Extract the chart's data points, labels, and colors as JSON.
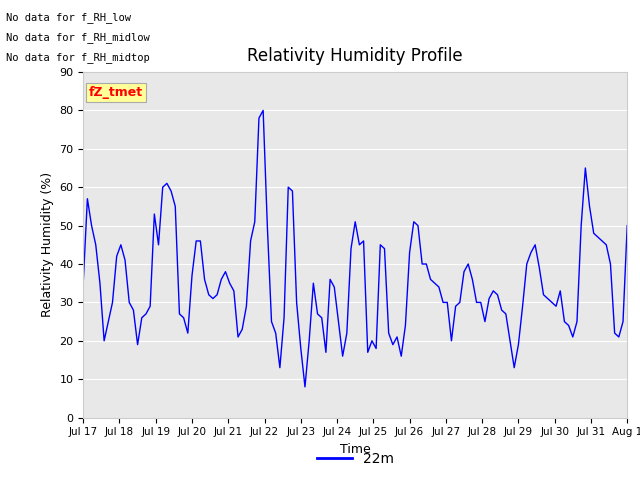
{
  "title": "Relativity Humidity Profile",
  "ylabel": "Relativity Humidity (%)",
  "xlabel": "Time",
  "legend_label": "22m",
  "line_color": "blue",
  "background_color": "#e8e8e8",
  "ylim": [
    0,
    90
  ],
  "yticks": [
    0,
    10,
    20,
    30,
    40,
    50,
    60,
    70,
    80,
    90
  ],
  "no_data_texts": [
    "No data for f_RH_low",
    "No data for f_RH_midlow",
    "No data for f_RH_midtop"
  ],
  "legend_box_text": "fZ_tmet",
  "legend_box_color": "#ffff99",
  "legend_box_text_color": "red",
  "x_tick_labels": [
    "Jul 17",
    "Jul 18",
    "Jul 19",
    "Jul 20",
    "Jul 21",
    "Jul 22",
    "Jul 23",
    "Jul 24",
    "Jul 25",
    "Jul 26",
    "Jul 27",
    "Jul 28",
    "Jul 29",
    "Jul 30",
    "Jul 31",
    "Aug 1"
  ],
  "rh_values": [
    35,
    57,
    50,
    45,
    35,
    20,
    25,
    30,
    42,
    45,
    41,
    30,
    28,
    19,
    26,
    27,
    29,
    53,
    45,
    60,
    61,
    59,
    55,
    27,
    26,
    22,
    37,
    46,
    46,
    36,
    32,
    31,
    32,
    36,
    38,
    35,
    33,
    21,
    23,
    29,
    46,
    51,
    78,
    80,
    50,
    25,
    22,
    13,
    26,
    60,
    59,
    30,
    18,
    8,
    20,
    35,
    27,
    26,
    17,
    36,
    34,
    25,
    16,
    22,
    44,
    51,
    45,
    46,
    17,
    20,
    18,
    45,
    44,
    22,
    19,
    21,
    16,
    24,
    43,
    51,
    50,
    40,
    40,
    36,
    35,
    34,
    30,
    30,
    20,
    29,
    30,
    38,
    40,
    36,
    30,
    30,
    25,
    31,
    33,
    32,
    28,
    27,
    20,
    13,
    19,
    29,
    40,
    43,
    45,
    39,
    32,
    31,
    30,
    29,
    33,
    25,
    24,
    21,
    25,
    50,
    65,
    55,
    48,
    47,
    46,
    45,
    40,
    22,
    21,
    25,
    50
  ],
  "figsize": [
    6.4,
    4.8
  ],
  "dpi": 100
}
